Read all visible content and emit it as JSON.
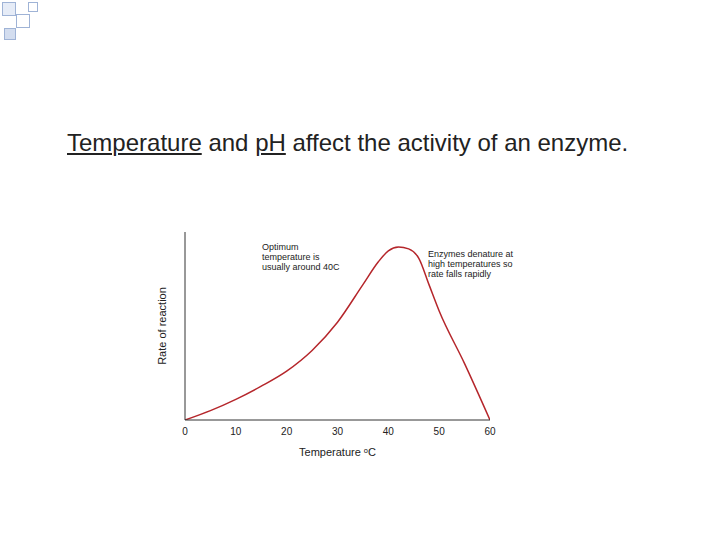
{
  "heading": {
    "parts": [
      {
        "text": "Temperature",
        "underline": true
      },
      {
        "text": " and "
      },
      {
        "text": "pH",
        "underline": true
      },
      {
        "text": " affect the activity of an enzyme."
      }
    ]
  },
  "chart_data": {
    "type": "line",
    "x": [
      0,
      5,
      10,
      15,
      20,
      25,
      30,
      35,
      38,
      40,
      42,
      44,
      46,
      48,
      50,
      55,
      60
    ],
    "values": [
      0,
      5,
      11,
      18,
      26,
      37,
      52,
      72,
      84,
      90,
      92,
      91,
      86,
      72,
      58,
      30,
      0
    ],
    "color": "#b5262b",
    "xlim": [
      0,
      60
    ],
    "xticks": [
      0,
      10,
      20,
      30,
      40,
      50,
      60
    ],
    "ylim": [
      0,
      100
    ],
    "xlabel": "Temperature ᵒC",
    "ylabel": "Rate of reaction",
    "annotations": [
      "Optimum temperature is usually around 40C",
      "Enzymes denature at high temperatures so rate falls rapidly"
    ],
    "grid": false,
    "tick_labels": "x"
  }
}
